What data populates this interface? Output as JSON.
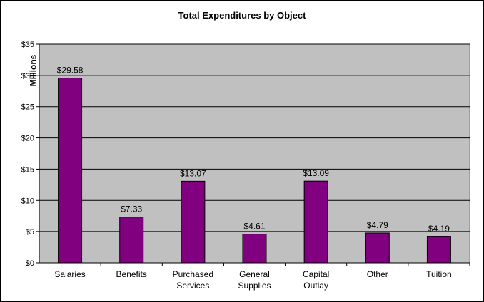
{
  "chart_data": {
    "type": "bar",
    "title": "Total Expenditures by Object",
    "xlabel": "",
    "ylabel": "Millions",
    "categories": [
      [
        "Salaries"
      ],
      [
        "Benefits"
      ],
      [
        "Purchased",
        "Services"
      ],
      [
        "General",
        "Supplies"
      ],
      [
        "Capital",
        "Outlay"
      ],
      [
        "Other"
      ],
      [
        "Tuition"
      ]
    ],
    "values": [
      29.58,
      7.33,
      13.07,
      4.61,
      13.09,
      4.79,
      4.19
    ],
    "data_labels": [
      "$29.58",
      "$7.33",
      "$13.07",
      "$4.61",
      "$13.09",
      "$4.79",
      "$4.19"
    ],
    "yticks": [
      "$0",
      "$5",
      "$10",
      "$15",
      "$20",
      "$25",
      "$30",
      "$35"
    ],
    "ylim": [
      0,
      35
    ],
    "grid": true,
    "legend": false,
    "colors": {
      "bar": "#800080",
      "plot_background": "#c0c0c0",
      "gridline": "#000000"
    }
  }
}
